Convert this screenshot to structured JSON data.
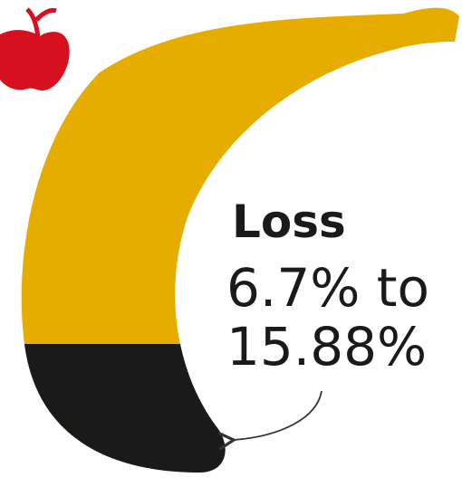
{
  "label": {
    "title": "Loss",
    "lines": [
      "6.7% to",
      "15.88%"
    ]
  }
}
